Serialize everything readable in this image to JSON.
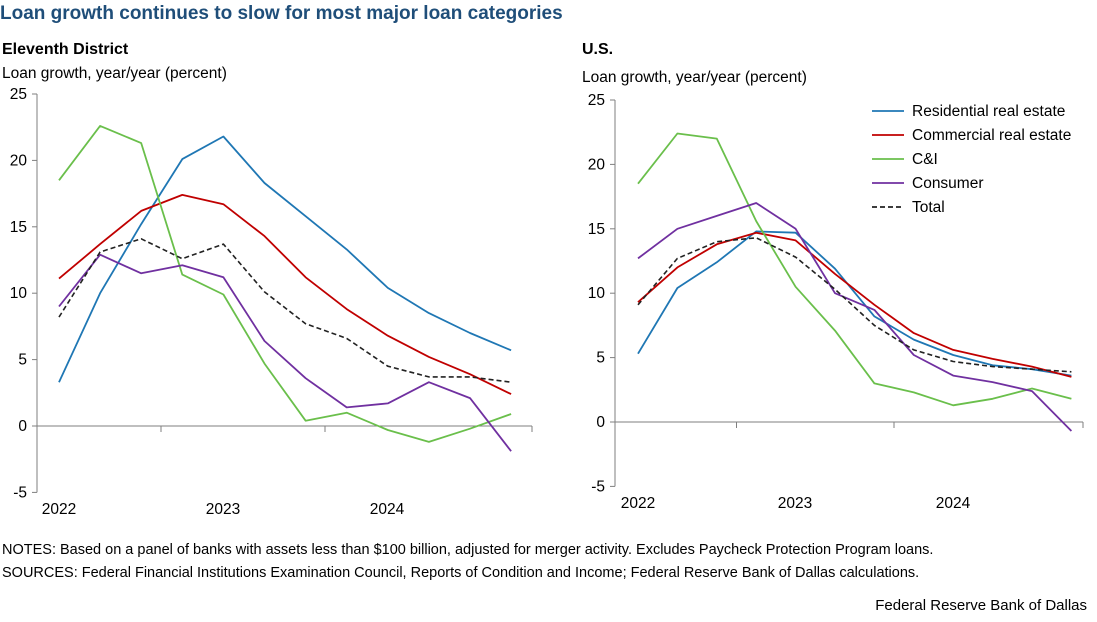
{
  "title": "Loan growth continues to slow for most major loan categories",
  "notes": "NOTES: Based on a panel of banks with assets less than $100 billion, adjusted for merger activity. Excludes Paycheck Protection Program loans.",
  "sources": "SOURCES: Federal Financial Institutions Examination Council, Reports of Condition and Income; Federal Reserve Bank of Dallas calculations.",
  "credit": "Federal Reserve Bank of Dallas",
  "colors": {
    "residential": "#1f77b4",
    "commercial": "#c00000",
    "ci": "#6abf4b",
    "consumer": "#7030a0",
    "total": "#222222",
    "title": "#1f4e79"
  },
  "chart_data": [
    {
      "type": "line",
      "title": "Eleventh District",
      "ylabel": "Loan growth, year/year (percent)",
      "xlabel": "",
      "ylim": [
        -5,
        25
      ],
      "yticks": [
        "25",
        "20",
        "15",
        "10",
        "5",
        "0",
        "-5"
      ],
      "x_tick_labels": [
        "2022",
        "2023",
        "2024"
      ],
      "x": [
        "2022Q1",
        "2022Q2",
        "2022Q3",
        "2022Q4",
        "2023Q1",
        "2023Q2",
        "2023Q3",
        "2023Q4",
        "2024Q1",
        "2024Q2",
        "2024Q3",
        "2024Q4"
      ],
      "series": [
        {
          "name": "Residential real estate",
          "key": "residential",
          "values": [
            3.3,
            10.0,
            15.2,
            20.1,
            21.8,
            18.3,
            15.8,
            13.3,
            10.4,
            8.5,
            7.0,
            5.7
          ]
        },
        {
          "name": "Commercial real estate",
          "key": "commercial",
          "values": [
            11.1,
            13.7,
            16.2,
            17.4,
            16.7,
            14.3,
            11.2,
            8.8,
            6.8,
            5.2,
            3.9,
            2.4
          ]
        },
        {
          "name": "C&I",
          "key": "ci",
          "values": [
            18.5,
            22.6,
            21.3,
            11.4,
            9.9,
            4.7,
            0.4,
            1.0,
            -0.3,
            -1.2,
            -0.2,
            0.9
          ]
        },
        {
          "name": "Consumer",
          "key": "consumer",
          "values": [
            9.0,
            12.9,
            11.5,
            12.1,
            11.2,
            6.4,
            3.6,
            1.4,
            1.7,
            3.3,
            2.1,
            -1.9
          ]
        },
        {
          "name": "Total",
          "key": "total",
          "dashed": true,
          "values": [
            8.2,
            13.1,
            14.1,
            12.6,
            13.7,
            10.1,
            7.7,
            6.6,
            4.5,
            3.7,
            3.7,
            3.3
          ]
        }
      ]
    },
    {
      "type": "line",
      "title": "U.S.",
      "ylabel": "Loan growth, year/year (percent)",
      "xlabel": "",
      "ylim": [
        -5,
        25
      ],
      "yticks": [
        "25",
        "20",
        "15",
        "10",
        "5",
        "0",
        "-5"
      ],
      "x_tick_labels": [
        "2022",
        "2023",
        "2024"
      ],
      "x": [
        "2022Q1",
        "2022Q2",
        "2022Q3",
        "2022Q4",
        "2023Q1",
        "2023Q2",
        "2023Q3",
        "2023Q4",
        "2024Q1",
        "2024Q2",
        "2024Q3",
        "2024Q4"
      ],
      "legend": "top-right",
      "series": [
        {
          "name": "Residential real estate",
          "key": "residential",
          "values": [
            5.3,
            10.4,
            12.4,
            14.8,
            14.7,
            11.9,
            8.2,
            6.4,
            5.2,
            4.4,
            4.1,
            3.6
          ]
        },
        {
          "name": "Commercial real estate",
          "key": "commercial",
          "values": [
            9.3,
            12.0,
            13.8,
            14.7,
            14.1,
            11.5,
            9.1,
            6.9,
            5.6,
            4.9,
            4.3,
            3.5
          ]
        },
        {
          "name": "C&I",
          "key": "ci",
          "values": [
            18.5,
            22.4,
            22.0,
            15.6,
            10.5,
            7.1,
            3.0,
            2.3,
            1.3,
            1.8,
            2.6,
            1.8
          ]
        },
        {
          "name": "Consumer",
          "key": "consumer",
          "values": [
            12.7,
            15.0,
            16.0,
            17.0,
            15.0,
            10.0,
            8.7,
            5.2,
            3.6,
            3.1,
            2.4,
            -0.7
          ]
        },
        {
          "name": "Total",
          "key": "total",
          "dashed": true,
          "values": [
            9.1,
            12.7,
            14.0,
            14.3,
            12.8,
            10.3,
            7.5,
            5.6,
            4.7,
            4.3,
            4.1,
            3.9
          ]
        }
      ]
    }
  ]
}
